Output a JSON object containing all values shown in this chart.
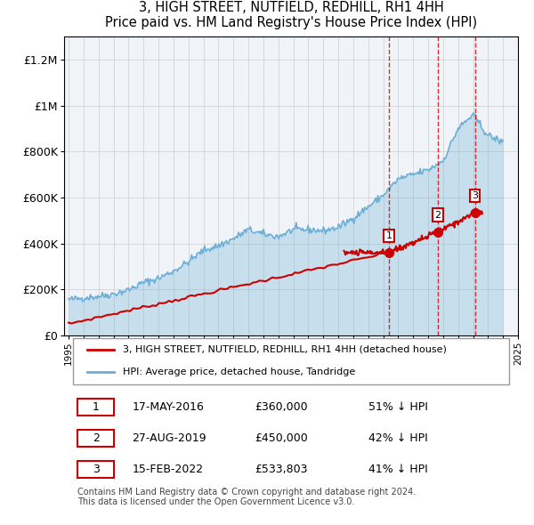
{
  "title": "3, HIGH STREET, NUTFIELD, REDHILL, RH1 4HH",
  "subtitle": "Price paid vs. HM Land Registry's House Price Index (HPI)",
  "hpi_years": [
    1995,
    1996,
    1997,
    1998,
    1999,
    2000,
    2001,
    2002,
    2003,
    2004,
    2005,
    2006,
    2007,
    2008,
    2009,
    2010,
    2011,
    2012,
    2013,
    2014,
    2015,
    2016,
    2017,
    2018,
    2019,
    2020,
    2021,
    2022,
    2023,
    2024
  ],
  "hpi_values": [
    155000,
    163000,
    170000,
    180000,
    198000,
    230000,
    248000,
    280000,
    320000,
    370000,
    390000,
    420000,
    460000,
    440000,
    430000,
    460000,
    460000,
    455000,
    470000,
    510000,
    560000,
    610000,
    680000,
    700000,
    720000,
    760000,
    900000,
    960000,
    870000,
    840000
  ],
  "price_paid_dates": [
    2016.38,
    2019.66,
    2022.12
  ],
  "price_paid_values": [
    360000,
    450000,
    533803
  ],
  "price_paid_labels": [
    "1",
    "2",
    "3"
  ],
  "sale_date_strings": [
    "17-MAY-2016",
    "27-AUG-2019",
    "15-FEB-2022"
  ],
  "sale_price_strings": [
    "£360,000",
    "£450,000",
    "£533,803"
  ],
  "sale_hpi_strings": [
    "51% ↓ HPI",
    "42% ↓ HPI",
    "41% ↓ HPI"
  ],
  "hpi_color": "#6baed6",
  "price_color": "#cc0000",
  "marker_color": "#cc0000",
  "vline_color": "#cc0000",
  "background_color": "#dce9f5",
  "plot_bg": "#ffffff",
  "ylim": [
    0,
    1300000
  ],
  "xlim_start": 1995,
  "xlim_end": 2025,
  "footer": "Contains HM Land Registry data © Crown copyright and database right 2024.\nThis data is licensed under the Open Government Licence v3.0.",
  "legend_label_price": "3, HIGH STREET, NUTFIELD, REDHILL, RH1 4HH (detached house)",
  "legend_label_hpi": "HPI: Average price, detached house, Tandridge"
}
